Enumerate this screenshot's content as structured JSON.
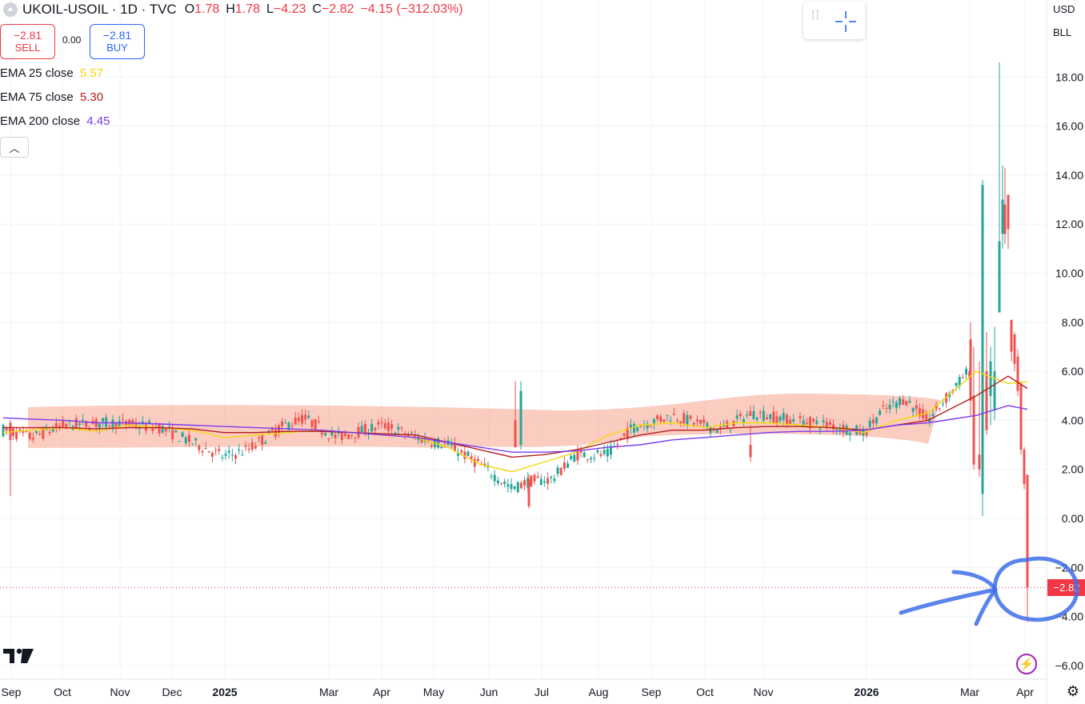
{
  "header": {
    "symbol": "UKOIL-USOIL · 1D · TVC",
    "open_label": "O",
    "open": "1.78",
    "high_label": "H",
    "high": "1.78",
    "low_label": "L",
    "low": "−4.23",
    "close_label": "C",
    "close": "−2.82",
    "change": "−4.15 (−312.03%)"
  },
  "trade": {
    "sell_price": "−2.81",
    "sell_label": "SELL",
    "spread": "0.00",
    "buy_price": "−2.81",
    "buy_label": "BUY"
  },
  "indicators": [
    {
      "label": "EMA 25 close",
      "value": "5.57",
      "color": "#f5d90a"
    },
    {
      "label": "EMA 75 close",
      "value": "5.30",
      "color": "#b71c1c"
    },
    {
      "label": "EMA 200 close",
      "value": "4.45",
      "color": "#7c3aed"
    }
  ],
  "price_axis": {
    "currency": "USD",
    "unit": "BLL",
    "current_price": "−2.82"
  },
  "colors": {
    "up": "#26a69a",
    "down": "#ef5350",
    "highlight_band": "#f7a28c",
    "annotation": "#3d6fe8",
    "price_tag": "#f23645"
  },
  "icons": [
    "collapse-chevron-icon",
    "drag-handle-icon",
    "crosshair-icon",
    "tradingview-logo-icon",
    "lightning-icon",
    "settings-gear-icon"
  ],
  "chart_data": {
    "type": "candlestick",
    "title": "UKOIL-USOIL · 1D · TVC",
    "x_ticks": [
      "Sep",
      "Oct",
      "Nov",
      "Dec",
      "2025",
      "Mar",
      "Apr",
      "May",
      "Jun",
      "Jul",
      "Aug",
      "Sep",
      "Oct",
      "Nov",
      "2026",
      "Mar",
      "Apr"
    ],
    "y_ticks": [
      "18.00",
      "16.00",
      "14.00",
      "12.00",
      "10.00",
      "8.00",
      "6.00",
      "4.00",
      "2.00",
      "0.00",
      "−2.00",
      "−4.00",
      "−6.00"
    ],
    "ylim": [
      -6.6,
      19.5
    ],
    "grid": true,
    "series": [
      {
        "name": "EMA 25 close",
        "values": [
          3.5,
          3.6,
          3.7,
          3.55,
          3.8,
          3.7,
          3.6,
          3.3,
          3.4,
          3.5,
          3.6,
          3.5,
          3.4,
          3.3,
          2.9,
          2.2,
          1.9,
          2.3,
          2.7,
          3.4,
          3.8,
          3.9,
          3.7,
          3.9,
          3.9,
          3.8,
          3.7,
          3.5,
          4.0,
          4.3,
          6.0,
          5.5,
          5.57
        ]
      },
      {
        "name": "EMA 75 close",
        "values": [
          3.7,
          3.7,
          3.7,
          3.65,
          3.7,
          3.7,
          3.65,
          3.5,
          3.5,
          3.55,
          3.55,
          3.5,
          3.45,
          3.4,
          3.1,
          2.8,
          2.5,
          2.6,
          2.8,
          3.1,
          3.4,
          3.6,
          3.6,
          3.7,
          3.75,
          3.75,
          3.7,
          3.6,
          3.8,
          4.0,
          5.0,
          5.8,
          5.3
        ]
      },
      {
        "name": "EMA 200 close",
        "values": [
          4.1,
          4.05,
          4.0,
          3.9,
          3.9,
          3.85,
          3.8,
          3.75,
          3.7,
          3.65,
          3.6,
          3.5,
          3.4,
          3.3,
          3.1,
          2.9,
          2.7,
          2.7,
          2.75,
          2.9,
          3.0,
          3.2,
          3.3,
          3.4,
          3.5,
          3.55,
          3.55,
          3.6,
          3.8,
          3.9,
          4.2,
          4.6,
          4.45
        ]
      }
    ],
    "candles_highlight": [
      {
        "month": "Jun",
        "high": 5.6,
        "low": 2.8
      },
      {
        "month": "Jul",
        "high": 2.0,
        "low": 0.4
      },
      {
        "month": "Mar 2026",
        "high": 13.8,
        "low": 0.1
      },
      {
        "month": "Mar 2026",
        "high": 18.6,
        "low": 8.4
      },
      {
        "month": "Apr 2026",
        "high": 1.78,
        "low": -4.23,
        "close": -2.82
      }
    ],
    "last_price": -2.82
  }
}
